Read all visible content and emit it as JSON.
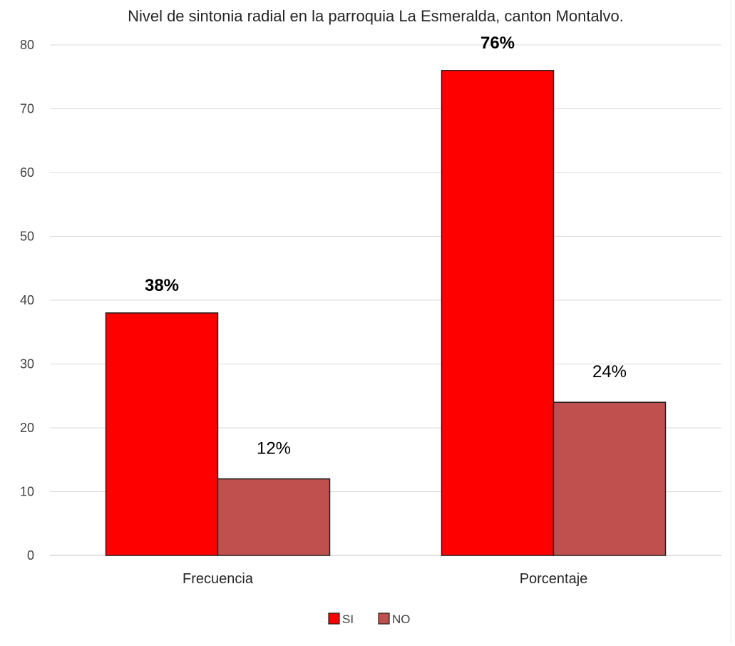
{
  "chart_data": {
    "type": "bar",
    "title": "Nivel de sintonia radial en la parroquia La Esmeralda, canton Montalvo.",
    "categories": [
      "Frecuencia",
      "Porcentaje"
    ],
    "series": [
      {
        "name": "SI",
        "values": [
          38,
          76
        ],
        "labels": [
          "38%",
          "76%"
        ],
        "color": "#ff0000",
        "label_bold": true
      },
      {
        "name": "NO",
        "values": [
          12,
          24
        ],
        "labels": [
          "12%",
          "24%"
        ],
        "color": "#c0504d",
        "label_bold": false
      }
    ],
    "ylim": [
      0,
      80
    ],
    "yticks": [
      0,
      10,
      20,
      30,
      40,
      50,
      60,
      70,
      80
    ],
    "grid": true,
    "legend_position": "bottom-center",
    "xlabel": "",
    "ylabel": ""
  }
}
